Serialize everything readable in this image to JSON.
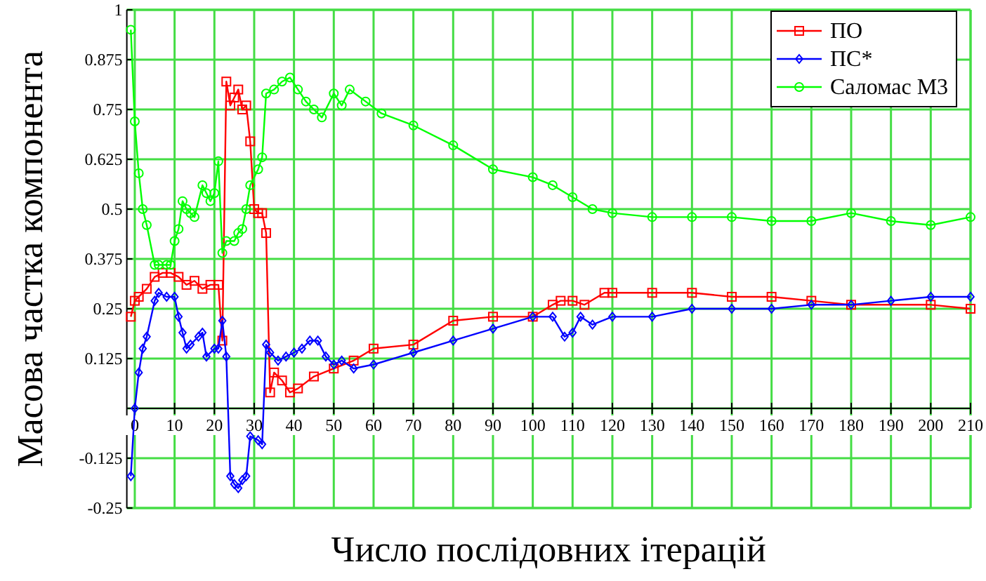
{
  "chart_data": {
    "type": "line",
    "xlabel": "Число послідовних ітерацій",
    "ylabel": "Масова частка компонента",
    "xlim": [
      -2,
      210
    ],
    "ylim": [
      -0.25,
      1
    ],
    "xticks": [
      0,
      10,
      20,
      30,
      40,
      50,
      60,
      70,
      80,
      90,
      100,
      110,
      120,
      130,
      140,
      150,
      160,
      170,
      180,
      190,
      200,
      210
    ],
    "yticks": [
      {
        "value": -0.25,
        "label": "-0.25"
      },
      {
        "value": -0.125,
        "label": "-0.125"
      },
      {
        "value": 0,
        "label": null
      },
      {
        "value": 0.125,
        "label": "0.125"
      },
      {
        "value": 0.25,
        "label": "0.25"
      },
      {
        "value": 0.375,
        "label": "0.375"
      },
      {
        "value": 0.5,
        "label": "0.5"
      },
      {
        "value": 0.625,
        "label": "0.625"
      },
      {
        "value": 0.75,
        "label": "0.75"
      },
      {
        "value": 0.875,
        "label": "0.875"
      },
      {
        "value": 1,
        "label": "1"
      }
    ],
    "grid": true,
    "legend": "top right",
    "series": [
      {
        "name": "ПО",
        "color": "#ff0000",
        "marker": "square",
        "x": [
          -1,
          0,
          1,
          3,
          5,
          7,
          9,
          11,
          13,
          15,
          17,
          19,
          21,
          22,
          23,
          24,
          25,
          26,
          27,
          28,
          29,
          30,
          31,
          32,
          33,
          34,
          35,
          37,
          39,
          41,
          45,
          50,
          55,
          60,
          70,
          80,
          90,
          100,
          105,
          107,
          110,
          113,
          118,
          120,
          130,
          140,
          150,
          160,
          170,
          180,
          200,
          210
        ],
        "values": [
          0.23,
          0.27,
          0.28,
          0.3,
          0.33,
          0.34,
          0.34,
          0.33,
          0.31,
          0.32,
          0.3,
          0.31,
          0.31,
          0.17,
          0.82,
          0.76,
          0.78,
          0.8,
          0.75,
          0.76,
          0.67,
          0.5,
          0.49,
          0.49,
          0.44,
          0.04,
          0.09,
          0.07,
          0.04,
          0.05,
          0.08,
          0.1,
          0.12,
          0.15,
          0.16,
          0.22,
          0.23,
          0.23,
          0.26,
          0.27,
          0.27,
          0.26,
          0.29,
          0.29,
          0.29,
          0.29,
          0.28,
          0.28,
          0.27,
          0.26,
          0.26,
          0.25
        ]
      },
      {
        "name": "ПС*",
        "color": "#0000ff",
        "marker": "diamond",
        "x": [
          -1,
          0,
          1,
          2,
          3,
          5,
          6,
          8,
          10,
          11,
          12,
          13,
          14,
          16,
          17,
          18,
          20,
          21,
          22,
          23,
          24,
          25,
          26,
          27,
          28,
          29,
          31,
          32,
          33,
          34,
          36,
          38,
          40,
          42,
          44,
          46,
          48,
          50,
          52,
          55,
          60,
          70,
          80,
          90,
          100,
          105,
          108,
          110,
          112,
          115,
          120,
          130,
          140,
          150,
          160,
          170,
          180,
          190,
          200,
          210
        ],
        "values": [
          -0.17,
          0,
          0.09,
          0.15,
          0.18,
          0.27,
          0.29,
          0.28,
          0.28,
          0.23,
          0.19,
          0.15,
          0.16,
          0.18,
          0.19,
          0.13,
          0.15,
          0.15,
          0.22,
          0.13,
          -0.17,
          -0.19,
          -0.2,
          -0.18,
          -0.17,
          -0.07,
          -0.08,
          -0.09,
          0.16,
          0.14,
          0.12,
          0.13,
          0.14,
          0.15,
          0.17,
          0.17,
          0.13,
          0.11,
          0.12,
          0.1,
          0.11,
          0.14,
          0.17,
          0.2,
          0.23,
          0.23,
          0.18,
          0.19,
          0.23,
          0.21,
          0.23,
          0.23,
          0.25,
          0.25,
          0.25,
          0.26,
          0.26,
          0.27,
          0.28,
          0.28
        ]
      },
      {
        "name": "Саломас М3",
        "color": "#00ff00",
        "marker": "circle",
        "x": [
          -1,
          0,
          1,
          2,
          3,
          5,
          6,
          8,
          9,
          10,
          11,
          12,
          13,
          14,
          15,
          17,
          18,
          19,
          20,
          21,
          22,
          23,
          25,
          26,
          27,
          28,
          29,
          31,
          32,
          33,
          35,
          37,
          39,
          41,
          43,
          45,
          47,
          50,
          52,
          54,
          58,
          62,
          70,
          80,
          90,
          100,
          105,
          110,
          115,
          120,
          130,
          140,
          150,
          160,
          170,
          180,
          190,
          200,
          210
        ],
        "values": [
          0.95,
          0.72,
          0.59,
          0.5,
          0.46,
          0.36,
          0.36,
          0.36,
          0.36,
          0.42,
          0.45,
          0.52,
          0.5,
          0.49,
          0.48,
          0.56,
          0.54,
          0.52,
          0.54,
          0.62,
          0.39,
          0.42,
          0.42,
          0.44,
          0.45,
          0.5,
          0.56,
          0.6,
          0.63,
          0.79,
          0.8,
          0.82,
          0.83,
          0.8,
          0.77,
          0.75,
          0.73,
          0.79,
          0.76,
          0.8,
          0.77,
          0.74,
          0.71,
          0.66,
          0.6,
          0.58,
          0.56,
          0.53,
          0.5,
          0.49,
          0.48,
          0.48,
          0.48,
          0.47,
          0.47,
          0.49,
          0.47,
          0.46,
          0.48
        ]
      }
    ]
  }
}
